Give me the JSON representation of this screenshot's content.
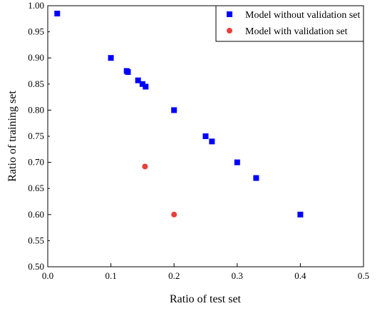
{
  "chart_data": {
    "type": "scatter",
    "xlabel": "Ratio of test set",
    "ylabel": "Ratio of training set",
    "xlim": [
      0,
      0.5
    ],
    "ylim": [
      0.5,
      1.0
    ],
    "xticks": [
      "0.0",
      "0.1",
      "0.2",
      "0.3",
      "0.4",
      "0.5"
    ],
    "yticks": [
      "0.50",
      "0.55",
      "0.60",
      "0.65",
      "0.70",
      "0.75",
      "0.80",
      "0.85",
      "0.90",
      "0.95",
      "1.00"
    ],
    "legend_position": "top-right",
    "series": [
      {
        "name": "Model without validation set",
        "marker": "square",
        "color": "#0000ff",
        "points": [
          {
            "x": 0.015,
            "y": 0.985
          },
          {
            "x": 0.1,
            "y": 0.9
          },
          {
            "x": 0.125,
            "y": 0.875
          },
          {
            "x": 0.127,
            "y": 0.873
          },
          {
            "x": 0.143,
            "y": 0.857
          },
          {
            "x": 0.15,
            "y": 0.85
          },
          {
            "x": 0.155,
            "y": 0.845
          },
          {
            "x": 0.2,
            "y": 0.8
          },
          {
            "x": 0.25,
            "y": 0.75
          },
          {
            "x": 0.26,
            "y": 0.74
          },
          {
            "x": 0.3,
            "y": 0.7
          },
          {
            "x": 0.33,
            "y": 0.67
          },
          {
            "x": 0.4,
            "y": 0.6
          }
        ]
      },
      {
        "name": "Model with validation set",
        "marker": "circle",
        "color": "#e8403c",
        "points": [
          {
            "x": 0.154,
            "y": 0.692
          },
          {
            "x": 0.2,
            "y": 0.6
          }
        ]
      }
    ]
  }
}
